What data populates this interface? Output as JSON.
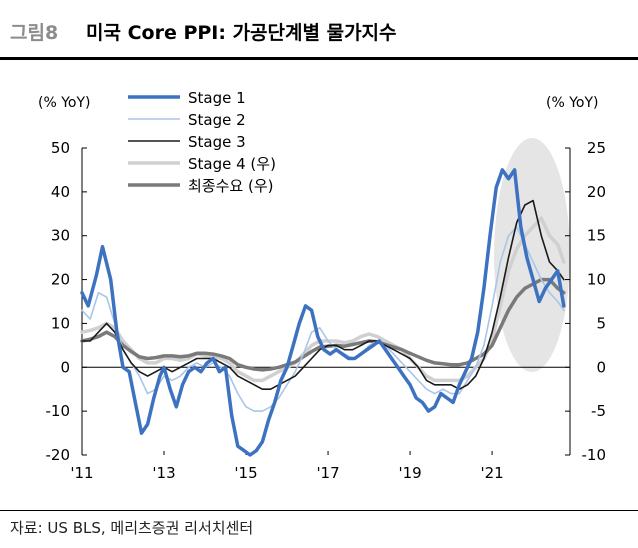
{
  "header": {
    "figure_number": "그림8",
    "title": "미국 Core PPI: 가공단계별 물가지수"
  },
  "source": "자료: US BLS, 메리츠증권 리서치센터",
  "chart_data": {
    "type": "line",
    "left_axis": {
      "label": "(% YoY)",
      "ylim": [
        -20,
        50
      ],
      "ticks": [
        "50",
        "40",
        "30",
        "20",
        "10",
        "0",
        "-10",
        "-20"
      ]
    },
    "right_axis": {
      "label": "(% YoY)",
      "ylim": [
        -10,
        25
      ],
      "ticks": [
        "25",
        "20",
        "15",
        "10",
        "5",
        "0",
        "-5",
        "-10"
      ]
    },
    "x_ticks": [
      {
        "label": "'11",
        "x": 2011.0
      },
      {
        "label": "'13",
        "x": 2013.0
      },
      {
        "label": "'15",
        "x": 2015.0
      },
      {
        "label": "'17",
        "x": 2017.0
      },
      {
        "label": "'19",
        "x": 2019.0
      },
      {
        "label": "'21",
        "x": 2021.0
      }
    ],
    "xlim": [
      2011.0,
      2022.9
    ],
    "grid": false,
    "legend_placement": "top-center",
    "annotation": "highlight ellipse around 2021–2022 peak",
    "series": [
      {
        "name": "Stage 1",
        "axis": "left",
        "color": "#3d72c0",
        "width": 3.5,
        "x": [
          2011.0,
          2011.15,
          2011.35,
          2011.5,
          2011.7,
          2011.85,
          2012.0,
          2012.15,
          2012.3,
          2012.45,
          2012.6,
          2012.75,
          2012.9,
          2013.0,
          2013.15,
          2013.3,
          2013.45,
          2013.6,
          2013.75,
          2013.9,
          2014.05,
          2014.2,
          2014.35,
          2014.5,
          2014.65,
          2014.8,
          2014.95,
          2015.1,
          2015.25,
          2015.4,
          2015.55,
          2015.7,
          2015.85,
          2016.0,
          2016.15,
          2016.3,
          2016.45,
          2016.6,
          2016.75,
          2016.9,
          2017.05,
          2017.2,
          2017.35,
          2017.5,
          2017.65,
          2017.8,
          2017.95,
          2018.1,
          2018.25,
          2018.4,
          2018.55,
          2018.7,
          2018.85,
          2019.0,
          2019.15,
          2019.3,
          2019.45,
          2019.6,
          2019.75,
          2019.9,
          2020.05,
          2020.2,
          2020.35,
          2020.5,
          2020.65,
          2020.8,
          2020.95,
          2021.1,
          2021.25,
          2021.4,
          2021.55,
          2021.7,
          2021.85,
          2022.0,
          2022.15,
          2022.3,
          2022.45,
          2022.6,
          2022.75
        ],
        "values": [
          17,
          14,
          21,
          27.5,
          20,
          8,
          0,
          -1,
          -8,
          -15,
          -13,
          -7,
          -2,
          0,
          -5,
          -9,
          -4,
          -1,
          0,
          -1,
          1,
          2,
          -1,
          0,
          -11,
          -18,
          -19,
          -20,
          -19,
          -17,
          -12,
          -8,
          -3,
          0,
          5,
          10,
          14,
          13,
          7,
          4,
          3,
          4,
          3,
          2,
          2,
          3,
          4,
          5,
          6,
          4,
          2,
          0,
          -2,
          -4,
          -7,
          -8,
          -10,
          -9,
          -6,
          -7,
          -8,
          -4,
          -1,
          2,
          8,
          18,
          30,
          41,
          45,
          43,
          45,
          32,
          25,
          20,
          15,
          18,
          20,
          22,
          14
        ]
      },
      {
        "name": "Stage 2",
        "axis": "left",
        "color": "#a9c6e8",
        "width": 1.6,
        "x": [
          2011.0,
          2011.2,
          2011.4,
          2011.6,
          2011.8,
          2012.0,
          2012.2,
          2012.4,
          2012.6,
          2012.8,
          2013.0,
          2013.2,
          2013.4,
          2013.6,
          2013.8,
          2014.0,
          2014.2,
          2014.4,
          2014.6,
          2014.8,
          2015.0,
          2015.2,
          2015.4,
          2015.6,
          2015.8,
          2016.0,
          2016.2,
          2016.4,
          2016.6,
          2016.8,
          2017.0,
          2017.2,
          2017.4,
          2017.6,
          2017.8,
          2018.0,
          2018.2,
          2018.4,
          2018.6,
          2018.8,
          2019.0,
          2019.2,
          2019.4,
          2019.6,
          2019.8,
          2020.0,
          2020.2,
          2020.4,
          2020.6,
          2020.8,
          2021.0,
          2021.2,
          2021.4,
          2021.6,
          2021.8,
          2022.0,
          2022.2,
          2022.4,
          2022.6,
          2022.75
        ],
        "values": [
          13,
          11,
          17,
          16,
          10,
          4,
          1,
          -2,
          -6,
          -5,
          -2,
          -3,
          -2,
          0,
          1,
          0,
          1,
          0,
          -2,
          -6,
          -9,
          -10,
          -10,
          -9,
          -7,
          -4,
          -1,
          3,
          8,
          9,
          6,
          4,
          3,
          2,
          3,
          5,
          6,
          5,
          3,
          1,
          -1,
          -3,
          -5,
          -6,
          -5,
          -6,
          -6,
          -3,
          0,
          5,
          14,
          24,
          30,
          32,
          28,
          24,
          20,
          17,
          15,
          13
        ]
      },
      {
        "name": "Stage 3",
        "axis": "left",
        "color": "#1a1a1a",
        "width": 1.6,
        "x": [
          2011.0,
          2011.2,
          2011.4,
          2011.6,
          2011.8,
          2012.0,
          2012.2,
          2012.4,
          2012.6,
          2012.8,
          2013.0,
          2013.2,
          2013.4,
          2013.6,
          2013.8,
          2014.0,
          2014.2,
          2014.4,
          2014.6,
          2014.8,
          2015.0,
          2015.2,
          2015.4,
          2015.6,
          2015.8,
          2016.0,
          2016.2,
          2016.4,
          2016.6,
          2016.8,
          2017.0,
          2017.2,
          2017.4,
          2017.6,
          2017.8,
          2018.0,
          2018.2,
          2018.4,
          2018.6,
          2018.8,
          2019.0,
          2019.2,
          2019.4,
          2019.6,
          2019.8,
          2020.0,
          2020.2,
          2020.4,
          2020.6,
          2020.8,
          2021.0,
          2021.2,
          2021.4,
          2021.6,
          2021.8,
          2022.0,
          2022.2,
          2022.4,
          2022.6,
          2022.75
        ],
        "values": [
          6,
          6,
          8,
          10,
          8,
          4,
          1,
          -1,
          -2,
          -1,
          0,
          -1,
          0,
          1,
          2,
          2,
          2,
          1,
          0,
          -2,
          -3,
          -4,
          -5,
          -5,
          -4,
          -3,
          -2,
          0,
          2,
          4,
          5,
          5,
          4,
          4,
          5,
          6,
          6,
          5,
          4,
          3,
          2,
          0,
          -3,
          -4,
          -4,
          -4,
          -5,
          -4,
          -2,
          2,
          8,
          16,
          25,
          33,
          37,
          38,
          30,
          24,
          22,
          20
        ]
      },
      {
        "name": "Stage 4 (우)",
        "axis": "right",
        "color": "#d0d0d0",
        "width": 3.5,
        "x": [
          2011.0,
          2011.2,
          2011.4,
          2011.6,
          2011.8,
          2012.0,
          2012.2,
          2012.4,
          2012.6,
          2012.8,
          2013.0,
          2013.2,
          2013.4,
          2013.6,
          2013.8,
          2014.0,
          2014.2,
          2014.4,
          2014.6,
          2014.8,
          2015.0,
          2015.2,
          2015.4,
          2015.6,
          2015.8,
          2016.0,
          2016.2,
          2016.4,
          2016.6,
          2016.8,
          2017.0,
          2017.2,
          2017.4,
          2017.6,
          2017.8,
          2018.0,
          2018.2,
          2018.4,
          2018.6,
          2018.8,
          2019.0,
          2019.2,
          2019.4,
          2019.6,
          2019.8,
          2020.0,
          2020.2,
          2020.4,
          2020.6,
          2020.8,
          2021.0,
          2021.2,
          2021.4,
          2021.6,
          2021.8,
          2022.0,
          2022.2,
          2022.4,
          2022.6,
          2022.75
        ],
        "values": [
          4,
          4.2,
          4.5,
          5,
          4.5,
          3,
          2,
          1,
          0.5,
          0.5,
          1,
          1,
          0.8,
          1,
          1.5,
          1.3,
          1.2,
          1,
          0.5,
          -0.5,
          -1,
          -1.5,
          -1.5,
          -1,
          -0.5,
          0,
          0.5,
          1.5,
          2.5,
          3,
          3,
          3,
          2.8,
          3,
          3.5,
          3.8,
          3.5,
          3,
          2.5,
          2,
          1,
          0,
          -1,
          -1.5,
          -1.5,
          -1.5,
          -1.5,
          -1,
          0,
          1,
          3,
          7,
          11,
          13.5,
          15,
          16,
          17,
          15,
          14,
          12
        ]
      },
      {
        "name": "최종수요 (우)",
        "axis": "right",
        "color": "#7a7a7a",
        "width": 3.5,
        "x": [
          2011.0,
          2011.2,
          2011.4,
          2011.6,
          2011.8,
          2012.0,
          2012.2,
          2012.4,
          2012.6,
          2012.8,
          2013.0,
          2013.2,
          2013.4,
          2013.6,
          2013.8,
          2014.0,
          2014.2,
          2014.4,
          2014.6,
          2014.8,
          2015.0,
          2015.2,
          2015.4,
          2015.6,
          2015.8,
          2016.0,
          2016.2,
          2016.4,
          2016.6,
          2016.8,
          2017.0,
          2017.2,
          2017.4,
          2017.6,
          2017.8,
          2018.0,
          2018.2,
          2018.4,
          2018.6,
          2018.8,
          2019.0,
          2019.2,
          2019.4,
          2019.6,
          2019.8,
          2020.0,
          2020.2,
          2020.4,
          2020.6,
          2020.8,
          2021.0,
          2021.2,
          2021.4,
          2021.6,
          2021.8,
          2022.0,
          2022.2,
          2022.4,
          2022.6,
          2022.75
        ],
        "values": [
          3,
          3.2,
          3.5,
          4,
          3.5,
          2.5,
          1.8,
          1.2,
          1,
          1.1,
          1.3,
          1.3,
          1.2,
          1.3,
          1.6,
          1.6,
          1.5,
          1.3,
          1,
          0.3,
          0,
          -0.2,
          -0.3,
          -0.2,
          0,
          0.3,
          0.6,
          1.2,
          1.8,
          2.3,
          2.4,
          2.5,
          2.4,
          2.6,
          2.8,
          3,
          2.9,
          2.6,
          2.3,
          2,
          1.6,
          1.2,
          0.8,
          0.5,
          0.4,
          0.3,
          0.3,
          0.5,
          1,
          1.5,
          2.5,
          4.5,
          6.5,
          8,
          9,
          9.5,
          10,
          10,
          9,
          8.5
        ]
      }
    ]
  }
}
